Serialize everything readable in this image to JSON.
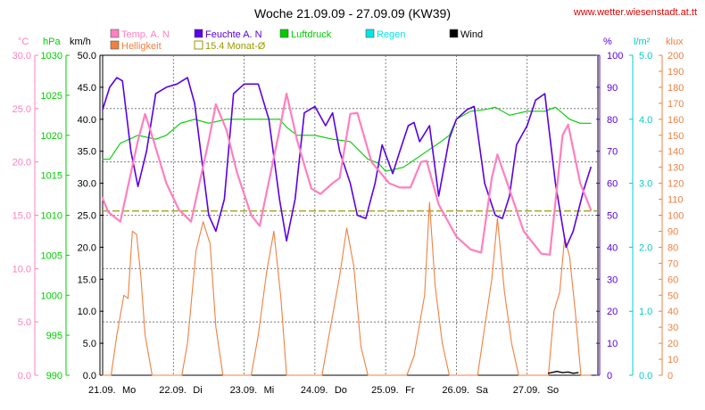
{
  "header": {
    "title": "Woche 21.09.09 - 27.09.09 (KW39)",
    "url": "www.wetter.wiesenstadt.at.tt"
  },
  "axes_units": {
    "temp": "°C",
    "pressure": "hPa",
    "wind": "km/h",
    "humidity": "%",
    "rain": "l/m²",
    "light": "klux"
  },
  "legend": [
    {
      "label": "Temp. A. N",
      "color": "#ff7fbf",
      "style": "box"
    },
    {
      "label": "Feuchte A. N",
      "color": "#5a00e6",
      "style": "box"
    },
    {
      "label": "Luftdruck",
      "color": "#00cc00",
      "style": "box"
    },
    {
      "label": "Regen",
      "color": "#00e5e5",
      "style": "box"
    },
    {
      "label": "Wind",
      "color": "#000000",
      "style": "box"
    },
    {
      "label": "Helligkeit",
      "color": "#f08040",
      "style": "box"
    },
    {
      "label": "15.4 Monat-Ø",
      "color": "#999900",
      "style": "outline"
    }
  ],
  "chart_data": {
    "type": "line",
    "x_ticks": [
      "21.09.",
      "22.09.",
      "23.09.",
      "24.09.",
      "25.09.",
      "26.09.",
      "27.09."
    ],
    "x_day_labels": [
      "Mo",
      "Di",
      "Mi",
      "Do",
      "Fr",
      "Sa",
      "So"
    ],
    "axes": {
      "temp": {
        "unit": "°C",
        "range": [
          0,
          30
        ],
        "ticks": [
          "0.0",
          "5.0",
          "10.0",
          "15.0",
          "20.0",
          "25.0",
          "30.0"
        ],
        "color": "#ff7fbf"
      },
      "pressure": {
        "unit": "hPa",
        "range": [
          990,
          1030
        ],
        "ticks": [
          "990",
          "995",
          "1000",
          "1005",
          "1010",
          "1015",
          "1020",
          "1025",
          "1030"
        ],
        "color": "#00cc00"
      },
      "wind": {
        "unit": "km/h",
        "range": [
          0,
          50
        ],
        "ticks": [
          "0.0",
          "5.0",
          "10.0",
          "15.0",
          "20.0",
          "25.0",
          "30.0",
          "35.0",
          "40.0",
          "45.0",
          "50.0"
        ],
        "color": "#000000"
      },
      "humidity": {
        "unit": "%",
        "range": [
          0,
          100
        ],
        "ticks": [
          "0",
          "10",
          "20",
          "30",
          "40",
          "50",
          "60",
          "70",
          "80",
          "90",
          "100"
        ],
        "color": "#5a00e6"
      },
      "rain": {
        "unit": "l/m²",
        "range": [
          0,
          5
        ],
        "ticks": [
          "0.0",
          "1.0",
          "2.0",
          "3.0",
          "4.0",
          "5.0"
        ],
        "color": "#00cccc"
      },
      "light": {
        "unit": "klux",
        "range": [
          0,
          200
        ],
        "ticks": [
          "0",
          "10",
          "20",
          "30",
          "40",
          "50",
          "60",
          "70",
          "80",
          "90",
          "100",
          "110",
          "120",
          "130",
          "140",
          "150",
          "160",
          "170",
          "180",
          "190",
          "200"
        ],
        "color": "#f08040"
      }
    },
    "monthly_avg_temp": 15.4,
    "series": [
      {
        "name": "Temp. A. N",
        "axis": "temp",
        "color": "#ff7fbf",
        "width": 2.2,
        "points": [
          [
            0,
            16.6
          ],
          [
            0.08,
            15.3
          ],
          [
            0.25,
            14.4
          ],
          [
            0.5,
            22
          ],
          [
            0.6,
            24.5
          ],
          [
            0.72,
            22
          ],
          [
            0.9,
            18
          ],
          [
            1.08,
            15.5
          ],
          [
            1.25,
            14.4
          ],
          [
            1.5,
            22
          ],
          [
            1.6,
            25.4
          ],
          [
            1.75,
            23
          ],
          [
            1.9,
            19
          ],
          [
            2.1,
            15
          ],
          [
            2.22,
            14
          ],
          [
            2.5,
            23
          ],
          [
            2.6,
            26.4
          ],
          [
            2.75,
            22
          ],
          [
            2.95,
            17.5
          ],
          [
            3.08,
            17
          ],
          [
            3.25,
            18
          ],
          [
            3.35,
            18.5
          ],
          [
            3.5,
            24.5
          ],
          [
            3.6,
            24.6
          ],
          [
            3.8,
            20
          ],
          [
            4.05,
            18
          ],
          [
            4.2,
            17.6
          ],
          [
            4.35,
            17.6
          ],
          [
            4.5,
            20
          ],
          [
            4.58,
            20.1
          ],
          [
            4.75,
            16
          ],
          [
            5.0,
            13
          ],
          [
            5.2,
            11.8
          ],
          [
            5.35,
            11.5
          ],
          [
            5.5,
            18.5
          ],
          [
            5.58,
            20.7
          ],
          [
            5.72,
            18
          ],
          [
            5.95,
            13.5
          ],
          [
            6.2,
            11.4
          ],
          [
            6.32,
            11.3
          ],
          [
            6.5,
            22.5
          ],
          [
            6.58,
            23.5
          ],
          [
            6.75,
            18
          ],
          [
            6.9,
            15.5
          ]
        ]
      },
      {
        "name": "Feuchte A. N",
        "axis": "humidity",
        "color": "#5a00e6",
        "width": 1.6,
        "points": [
          [
            0,
            83
          ],
          [
            0.1,
            90
          ],
          [
            0.2,
            93
          ],
          [
            0.28,
            92
          ],
          [
            0.4,
            70
          ],
          [
            0.5,
            59
          ],
          [
            0.62,
            70
          ],
          [
            0.75,
            88
          ],
          [
            0.9,
            90
          ],
          [
            1.05,
            91
          ],
          [
            1.2,
            93
          ],
          [
            1.3,
            85
          ],
          [
            1.5,
            50
          ],
          [
            1.6,
            45
          ],
          [
            1.72,
            55
          ],
          [
            1.85,
            88
          ],
          [
            2.0,
            91
          ],
          [
            2.2,
            91
          ],
          [
            2.35,
            80
          ],
          [
            2.5,
            55
          ],
          [
            2.6,
            42
          ],
          [
            2.72,
            55
          ],
          [
            2.85,
            82
          ],
          [
            3.0,
            84
          ],
          [
            3.15,
            78
          ],
          [
            3.25,
            82
          ],
          [
            3.35,
            70
          ],
          [
            3.5,
            60
          ],
          [
            3.6,
            50
          ],
          [
            3.72,
            49
          ],
          [
            3.85,
            60
          ],
          [
            3.95,
            72
          ],
          [
            4.1,
            63
          ],
          [
            4.2,
            70
          ],
          [
            4.32,
            78
          ],
          [
            4.4,
            79
          ],
          [
            4.48,
            73
          ],
          [
            4.62,
            78
          ],
          [
            4.75,
            56
          ],
          [
            4.9,
            74
          ],
          [
            5.0,
            80
          ],
          [
            5.15,
            83
          ],
          [
            5.25,
            84
          ],
          [
            5.4,
            60
          ],
          [
            5.55,
            50
          ],
          [
            5.65,
            49
          ],
          [
            5.75,
            56
          ],
          [
            5.85,
            72
          ],
          [
            6.0,
            78
          ],
          [
            6.12,
            86
          ],
          [
            6.25,
            88
          ],
          [
            6.4,
            60
          ],
          [
            6.55,
            40
          ],
          [
            6.65,
            45
          ],
          [
            6.8,
            58
          ],
          [
            6.9,
            65
          ]
        ]
      },
      {
        "name": "Luftdruck",
        "axis": "pressure",
        "color": "#00cc00",
        "width": 1.1,
        "points": [
          [
            0,
            1017
          ],
          [
            0.1,
            1017
          ],
          [
            0.25,
            1019
          ],
          [
            0.5,
            1020
          ],
          [
            0.75,
            1019.5
          ],
          [
            0.9,
            1020
          ],
          [
            1.1,
            1021.5
          ],
          [
            1.3,
            1022
          ],
          [
            1.5,
            1021.5
          ],
          [
            1.75,
            1022
          ],
          [
            2.0,
            1022
          ],
          [
            2.25,
            1022
          ],
          [
            2.5,
            1022
          ],
          [
            2.6,
            1021
          ],
          [
            2.75,
            1020
          ],
          [
            3.0,
            1020
          ],
          [
            3.25,
            1019.5
          ],
          [
            3.5,
            1019.2
          ],
          [
            3.75,
            1017
          ],
          [
            3.9,
            1016.5
          ],
          [
            4.0,
            1015.5
          ],
          [
            4.25,
            1016
          ],
          [
            4.5,
            1017.5
          ],
          [
            4.75,
            1019
          ],
          [
            4.9,
            1020
          ],
          [
            5.0,
            1022
          ],
          [
            5.2,
            1023
          ],
          [
            5.4,
            1023.2
          ],
          [
            5.55,
            1023.5
          ],
          [
            5.75,
            1022.5
          ],
          [
            6.0,
            1023
          ],
          [
            6.25,
            1023
          ],
          [
            6.4,
            1023.5
          ],
          [
            6.6,
            1022
          ],
          [
            6.75,
            1021.5
          ],
          [
            6.9,
            1021.5
          ]
        ]
      },
      {
        "name": "Helligkeit",
        "axis": "light",
        "color": "#f08040",
        "width": 1.1,
        "points": [
          [
            0,
            0
          ],
          [
            0.12,
            0
          ],
          [
            0.2,
            25
          ],
          [
            0.3,
            50
          ],
          [
            0.36,
            48
          ],
          [
            0.42,
            90
          ],
          [
            0.48,
            88
          ],
          [
            0.54,
            62
          ],
          [
            0.6,
            25
          ],
          [
            0.7,
            0
          ],
          [
            1.12,
            0
          ],
          [
            1.2,
            20
          ],
          [
            1.32,
            78
          ],
          [
            1.42,
            96
          ],
          [
            1.52,
            82
          ],
          [
            1.6,
            30
          ],
          [
            1.7,
            0
          ],
          [
            2.1,
            0
          ],
          [
            2.2,
            25
          ],
          [
            2.32,
            65
          ],
          [
            2.42,
            90
          ],
          [
            2.52,
            48
          ],
          [
            2.6,
            0
          ],
          [
            3.1,
            0
          ],
          [
            3.2,
            25
          ],
          [
            3.35,
            62
          ],
          [
            3.45,
            92
          ],
          [
            3.55,
            68
          ],
          [
            3.65,
            18
          ],
          [
            3.75,
            0
          ],
          [
            4.3,
            0
          ],
          [
            4.4,
            12
          ],
          [
            4.55,
            50
          ],
          [
            4.62,
            108
          ],
          [
            4.7,
            56
          ],
          [
            4.8,
            20
          ],
          [
            4.9,
            0
          ],
          [
            5.3,
            0
          ],
          [
            5.4,
            30
          ],
          [
            5.5,
            60
          ],
          [
            5.58,
            98
          ],
          [
            5.68,
            52
          ],
          [
            5.78,
            20
          ],
          [
            5.88,
            0
          ],
          [
            6.3,
            0
          ],
          [
            6.38,
            40
          ],
          [
            6.46,
            52
          ],
          [
            6.53,
            86
          ],
          [
            6.6,
            74
          ],
          [
            6.68,
            40
          ],
          [
            6.76,
            0
          ],
          [
            6.9,
            0
          ]
        ]
      },
      {
        "name": "Wind",
        "axis": "wind",
        "color": "#000000",
        "width": 1.4,
        "points": [
          [
            6.3,
            0.3
          ],
          [
            6.42,
            0.6
          ],
          [
            6.5,
            0.4
          ],
          [
            6.58,
            0.5
          ],
          [
            6.65,
            0.3
          ],
          [
            6.72,
            0.4
          ]
        ]
      }
    ]
  }
}
